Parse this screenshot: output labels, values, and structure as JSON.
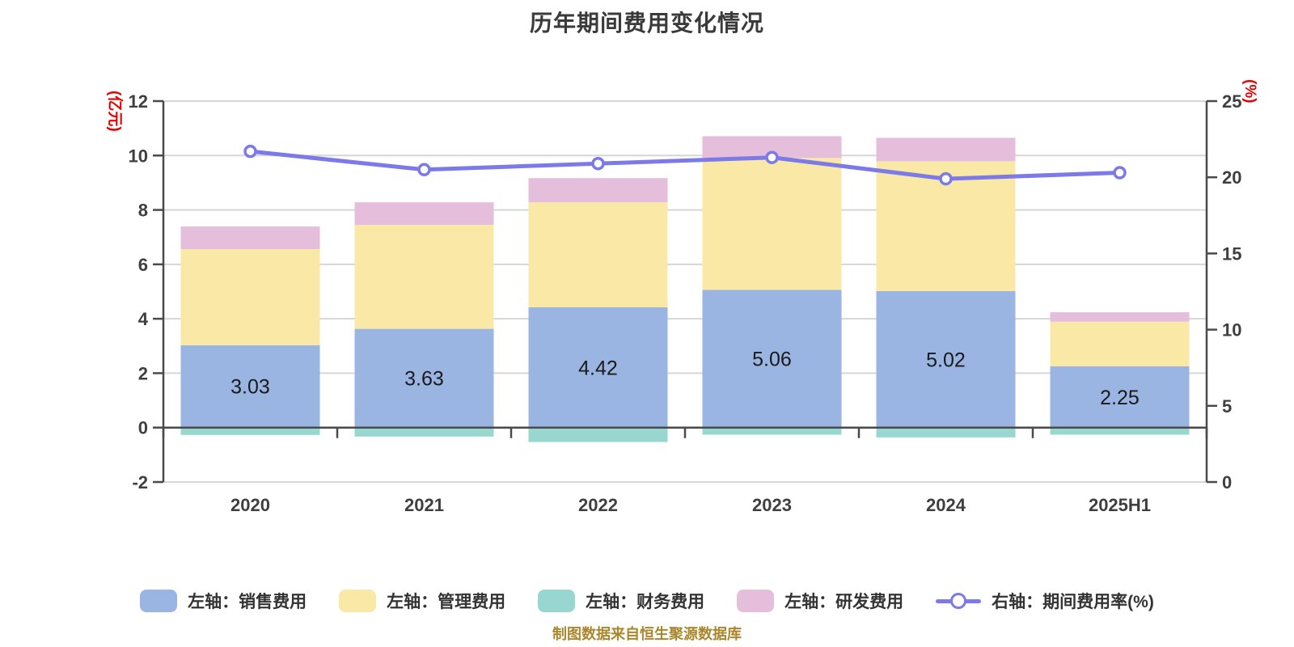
{
  "title": "历年期间费用变化情况",
  "source_note": "制图数据来自恒生聚源数据库",
  "colors": {
    "title": "#3a3a3a",
    "grid": "#d6d6d6",
    "axis": "#4a4a4a",
    "tick_label": "#3f3f3f",
    "bar_label": "#1a1a1a",
    "axis_unit": "#e60000",
    "legend_text": "#333333",
    "source": "#aa862d",
    "marker_fill": "#ffffff"
  },
  "left_axis": {
    "unit": "(亿元)",
    "min": -2,
    "max": 12,
    "ticks": [
      12,
      10,
      8,
      6,
      4,
      2,
      0,
      -2
    ]
  },
  "right_axis": {
    "unit": "(%)",
    "min": 0,
    "max": 25,
    "ticks": [
      25,
      20,
      15,
      10,
      5,
      0
    ]
  },
  "chart_data": {
    "type": "bar",
    "subtype": "stacked bars with overlay line, dual y-axis",
    "categories": [
      "2020",
      "2021",
      "2022",
      "2023",
      "2024",
      "2025H1"
    ],
    "series": [
      {
        "name": "左轴：销售费用",
        "type": "bar",
        "stack": "total",
        "color": "#9ab5e2",
        "values": [
          3.03,
          3.63,
          4.42,
          5.06,
          5.02,
          2.25
        ],
        "show_labels": true
      },
      {
        "name": "左轴：管理费用",
        "type": "bar",
        "stack": "total",
        "color": "#f9e8a6",
        "values": [
          3.53,
          3.82,
          3.86,
          4.85,
          4.77,
          1.64
        ]
      },
      {
        "name": "左轴：财务费用",
        "type": "bar",
        "stack": "total",
        "color": "#97d7cf",
        "values": [
          -0.27,
          -0.33,
          -0.53,
          -0.26,
          -0.36,
          -0.26
        ]
      },
      {
        "name": "左轴：研发费用",
        "type": "bar",
        "stack": "total",
        "color": "#e5bedb",
        "values": [
          0.83,
          0.83,
          0.89,
          0.8,
          0.86,
          0.35
        ]
      },
      {
        "name": "右轴：期间费用率(%)",
        "type": "line",
        "axis": "right",
        "color": "#7b7ae8",
        "values": [
          21.7,
          20.5,
          20.9,
          21.3,
          19.9,
          20.3
        ]
      }
    ],
    "bar_value_labels": [
      "3.03",
      "3.63",
      "4.42",
      "5.06",
      "5.02",
      "2.25"
    ],
    "title": "历年期间费用变化情况",
    "xlabel": "",
    "ylabel_left": "(亿元)",
    "ylabel_right": "(%)",
    "ylim_left": [
      -2,
      12
    ],
    "ylim_right": [
      0,
      25
    ],
    "grid": true,
    "legend_position": "bottom"
  }
}
